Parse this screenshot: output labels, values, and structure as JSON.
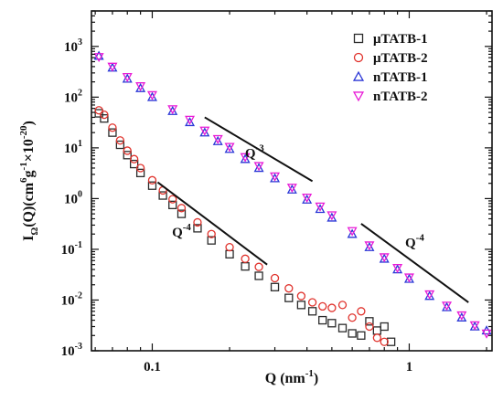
{
  "chart_data": {
    "type": "scatter",
    "xlabel": "Q (nm",
    "xlabel_sup": "-1",
    "xlabel_tail": ")",
    "ylabel": "I",
    "ylabel_sub": "Ω",
    "ylabel_mid": "(Q)(cm",
    "ylabel_sup1": "6",
    "ylabel_g": "g",
    "ylabel_sup2": "-1",
    "ylabel_x": "×10",
    "ylabel_sup3": "-20",
    "ylabel_tail": ")",
    "x_scale": "log",
    "y_scale": "log",
    "xlim": [
      0.058,
      2.1
    ],
    "ylim": [
      0.001,
      5000
    ],
    "x_ticks": [
      {
        "value": 0.1,
        "label": "0.1"
      },
      {
        "value": 1,
        "label": "1"
      }
    ],
    "y_ticks": [
      {
        "value": 0.001,
        "base": "10",
        "exp": "-3"
      },
      {
        "value": 0.01,
        "base": "10",
        "exp": "-2"
      },
      {
        "value": 0.1,
        "base": "10",
        "exp": "-1"
      },
      {
        "value": 1,
        "base": "10",
        "exp": "0"
      },
      {
        "value": 10,
        "base": "10",
        "exp": "1"
      },
      {
        "value": 100,
        "base": "10",
        "exp": "2"
      },
      {
        "value": 1000,
        "base": "10",
        "exp": "3"
      }
    ],
    "legend_position": "top-right",
    "grid": false,
    "series": [
      {
        "name": "μTATB-1",
        "marker": "square",
        "color": "#2b2b2b",
        "x": [
          0.062,
          0.065,
          0.07,
          0.075,
          0.08,
          0.085,
          0.09,
          0.1,
          0.11,
          0.12,
          0.13,
          0.15,
          0.17,
          0.2,
          0.23,
          0.26,
          0.3,
          0.34,
          0.38,
          0.42,
          0.46,
          0.5,
          0.55,
          0.6,
          0.65,
          0.7,
          0.75,
          0.8,
          0.85
        ],
        "y": [
          48,
          38,
          20,
          11.5,
          7.2,
          4.8,
          3.2,
          1.8,
          1.15,
          0.75,
          0.5,
          0.26,
          0.15,
          0.08,
          0.046,
          0.03,
          0.018,
          0.011,
          0.008,
          0.006,
          0.004,
          0.0035,
          0.0028,
          0.0022,
          0.002,
          0.0038,
          0.0025,
          0.003,
          0.0015
        ]
      },
      {
        "name": "μTATB-2",
        "marker": "circle",
        "color": "#e0322c",
        "x": [
          0.062,
          0.065,
          0.07,
          0.075,
          0.08,
          0.085,
          0.09,
          0.1,
          0.11,
          0.12,
          0.13,
          0.15,
          0.17,
          0.2,
          0.23,
          0.26,
          0.3,
          0.34,
          0.38,
          0.42,
          0.46,
          0.5,
          0.55,
          0.6,
          0.65,
          0.7,
          0.75,
          0.8
        ],
        "y": [
          55,
          45,
          25,
          14,
          8.8,
          6,
          4,
          2.3,
          1.45,
          0.97,
          0.65,
          0.34,
          0.2,
          0.11,
          0.065,
          0.045,
          0.027,
          0.017,
          0.012,
          0.009,
          0.0075,
          0.007,
          0.008,
          0.0045,
          0.006,
          0.003,
          0.0018,
          0.0015
        ]
      },
      {
        "name": "nTATB-1",
        "marker": "triangle-up",
        "color": "#2a36d6",
        "x": [
          0.062,
          0.07,
          0.08,
          0.09,
          0.1,
          0.12,
          0.14,
          0.16,
          0.18,
          0.2,
          0.23,
          0.26,
          0.3,
          0.35,
          0.4,
          0.45,
          0.5,
          0.6,
          0.7,
          0.8,
          0.9,
          1.0,
          1.2,
          1.4,
          1.6,
          1.8,
          2.0
        ],
        "y": [
          650,
          380,
          230,
          150,
          100,
          53,
          32,
          20,
          13.5,
          9.5,
          6,
          4,
          2.5,
          1.5,
          0.95,
          0.62,
          0.42,
          0.2,
          0.11,
          0.065,
          0.04,
          0.026,
          0.012,
          0.0072,
          0.0045,
          0.003,
          0.0025
        ]
      },
      {
        "name": "nTATB-2",
        "marker": "triangle-down",
        "color": "#e81ad6",
        "x": [
          0.062,
          0.07,
          0.08,
          0.09,
          0.1,
          0.12,
          0.14,
          0.16,
          0.18,
          0.2,
          0.23,
          0.26,
          0.3,
          0.35,
          0.4,
          0.45,
          0.5,
          0.6,
          0.7,
          0.8,
          0.9,
          1.0,
          1.2,
          1.4,
          1.6,
          1.8,
          2.0
        ],
        "y": [
          620,
          400,
          250,
          165,
          110,
          58,
          36,
          22,
          15,
          10.5,
          6.6,
          4.4,
          2.75,
          1.65,
          1.05,
          0.7,
          0.47,
          0.23,
          0.12,
          0.07,
          0.043,
          0.028,
          0.013,
          0.0078,
          0.005,
          0.0032,
          0.0022
        ]
      }
    ],
    "guide_lines": [
      {
        "label_base": "Q",
        "label_exp": "-3",
        "x1": 0.16,
        "y1": 40,
        "x2": 0.42,
        "y2": 2.2,
        "label_x": 0.25,
        "label_y": 6.5
      },
      {
        "label_base": "Q",
        "label_exp": "-4",
        "x1": 0.105,
        "y1": 2.1,
        "x2": 0.28,
        "y2": 0.05,
        "label_x": 0.13,
        "label_y": 0.18
      },
      {
        "label_base": "Q",
        "label_exp": "-4",
        "x1": 0.65,
        "y1": 0.32,
        "x2": 1.7,
        "y2": 0.009,
        "label_x": 1.05,
        "label_y": 0.11
      }
    ]
  }
}
